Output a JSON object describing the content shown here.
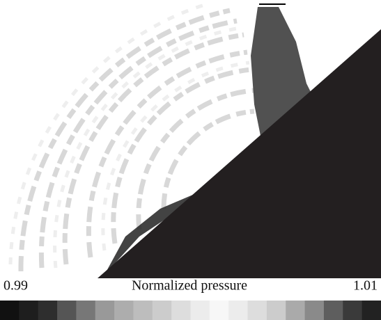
{
  "colorbar": {
    "min": 0.99,
    "max": 1.01,
    "label": "Normalized pressure",
    "colors": [
      "#111111",
      "#1e1e1e",
      "#2e2e2e",
      "#555555",
      "#777777",
      "#999999",
      "#adadad",
      "#bdbdbd",
      "#cccccc",
      "#dddddd",
      "#ececec",
      "#f7f7f7",
      "#ececec",
      "#dddddd",
      "#cccccc",
      "#aaaaaa",
      "#8a8a8a",
      "#5e5e5e",
      "#3a3a3a",
      "#222222"
    ]
  }
}
